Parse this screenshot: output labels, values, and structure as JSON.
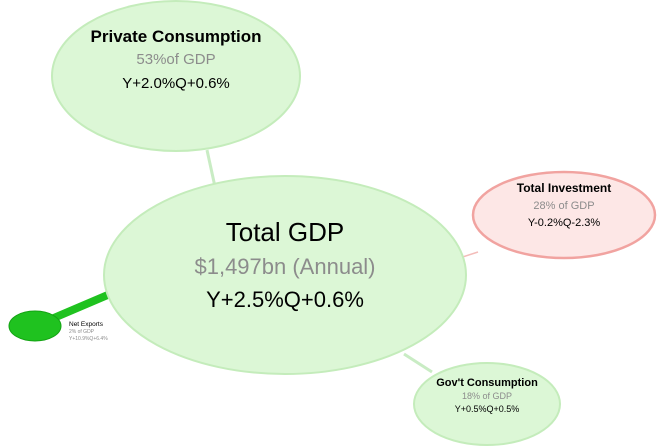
{
  "colors": {
    "bubble_green_fill": "#dcf7d6",
    "bubble_green_stroke": "#c4ecbb",
    "bubble_red_fill": "#fde7e6",
    "bubble_red_stroke": "#f1a3a0",
    "net_exports_fill": "#1fc21f",
    "net_exports_stroke": "#13a313",
    "share_text": "#8c8c8c"
  },
  "total_gdp": {
    "title": "Total GDP",
    "value": "$1,497bn (Annual)",
    "growth": "Y+2.5%Q+0.6%"
  },
  "private_consumption": {
    "title": "Private Consumption",
    "share": "53%of GDP",
    "growth": "Y+2.0%Q+0.6%"
  },
  "total_investment": {
    "title": "Total Investment",
    "share": "28% of GDP",
    "growth": "Y-0.2%Q-2.3%"
  },
  "govt_consumption": {
    "title": "Gov't Consumption",
    "share": "18% of GDP",
    "growth": "Y+0.5%Q+0.5%"
  },
  "net_exports": {
    "title": "Net Exports",
    "share": "2% of GDP",
    "growth": "Y+10.9%Q+6.4%"
  }
}
